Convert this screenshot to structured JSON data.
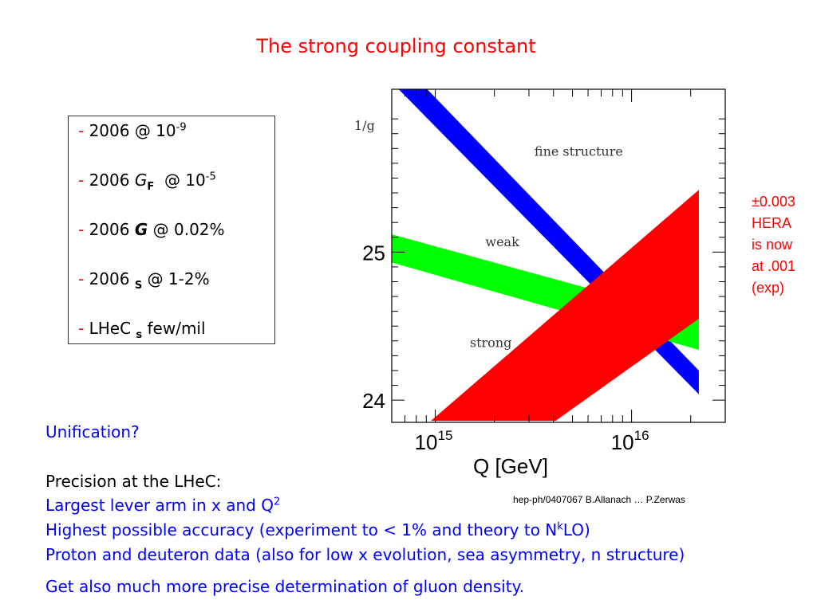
{
  "title": "The strong coupling constant",
  "box": {
    "dash": "-",
    "line1": {
      "year": "2006",
      "symbol": "",
      "at": "@ 10",
      "exp": "-9"
    },
    "line2": {
      "year": "2006",
      "symbol": "G",
      "sub": "F",
      "at": "@ 10",
      "exp": "-5"
    },
    "line3": {
      "year": "2006",
      "symbol": "G",
      "at": "@ 0.02%"
    },
    "line4": {
      "year": "2006",
      "symbol": "",
      "sub": "S",
      "at": "@ 1-2%"
    },
    "line5": {
      "prefix": "LHeC",
      "arrow": "",
      "symbol": "",
      "sub": "s",
      "at": "few/mil"
    }
  },
  "side_note": {
    "line1": "±0.003",
    "line2": "HERA",
    "line3": "is now",
    "line4": "at .001",
    "line5": "(exp)"
  },
  "citation": "hep-ph/0407067 B.Allanach … P.Zerwas",
  "text": {
    "unification": "Unification?",
    "precision_heading": "Precision at the LHeC:",
    "lever_arm": "Largest lever arm in x and Q",
    "lever_arm_sup": "2",
    "accuracy_a": "Highest possible accuracy (experiment to < 1% and theory to N",
    "accuracy_sup": "k",
    "accuracy_b": "LO)",
    "deuteron": "Proton and deuteron data (also for low x evolution, sea asymmetry, n structure)",
    "gluon": "Get also much more precise determination of gluon density."
  },
  "chart_data": {
    "type": "line",
    "ylabel": "1/g",
    "xlabel": "Q [GeV]",
    "x_scale": "log",
    "xlim": [
      600000000000000.0,
      3e+16
    ],
    "ylim": [
      23.85,
      26.1
    ],
    "x_ticks": [
      {
        "value": 1000000000000000.0,
        "base": "10",
        "exp": "15"
      },
      {
        "value": 1e+16,
        "base": "10",
        "exp": "16"
      }
    ],
    "y_ticks": [
      {
        "value": 24,
        "label": "24"
      },
      {
        "value": 25,
        "label": "25"
      }
    ],
    "series": [
      {
        "name": "fine structure",
        "color": "#0000ff",
        "upper": [
          [
            650000000000000.0,
            26.3
          ],
          [
            2.2e+16,
            24.2
          ]
        ],
        "lower": [
          [
            650000000000000.0,
            26.1
          ],
          [
            2.2e+16,
            24.04
          ]
        ],
        "label_at": [
          3200000000000000.0,
          25.65
        ]
      },
      {
        "name": "weak",
        "color": "#00ff00",
        "upper": [
          [
            600000000000000.0,
            25.12
          ],
          [
            2.2e+16,
            24.55
          ]
        ],
        "lower": [
          [
            600000000000000.0,
            24.93
          ],
          [
            2.2e+16,
            24.34
          ]
        ],
        "label_at": [
          1800000000000000.0,
          25.04
        ]
      },
      {
        "name": "strong",
        "color": "#ff0000",
        "upper": [
          [
            950000000000000.0,
            23.86
          ],
          [
            2.2e+16,
            25.42
          ]
        ],
        "lower": [
          [
            4100000000000000.0,
            23.86
          ],
          [
            2.2e+16,
            24.55
          ]
        ],
        "label_at": [
          1500000000000000.0,
          24.36
        ]
      }
    ]
  }
}
